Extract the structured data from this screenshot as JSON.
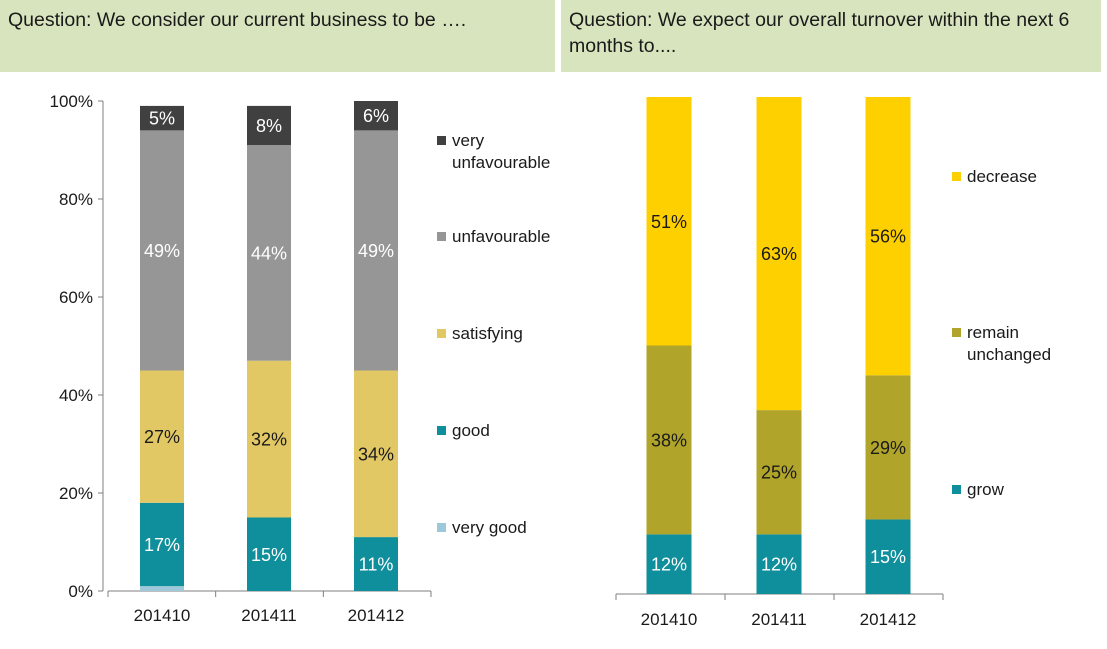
{
  "colors": {
    "header_bg": "#d7e4bd",
    "very_unfavourable": "#404040",
    "unfavourable": "#969696",
    "satisfying": "#e2c865",
    "good": "#0f8e9b",
    "very_good": "#9cc8da",
    "decrease": "#ffd000",
    "remain_unchanged": "#b0a42a",
    "grow": "#0f8e9b"
  },
  "chart_data": [
    {
      "type": "bar",
      "stacked": true,
      "title": "Question: We consider our current business to be ….",
      "categories": [
        "201410",
        "201411",
        "201412"
      ],
      "ylim": [
        0,
        100
      ],
      "y_ticks": [
        "0%",
        "20%",
        "40%",
        "60%",
        "80%",
        "100%"
      ],
      "legend_position": "right",
      "series": [
        {
          "name": "very good",
          "color": "#9cc8da",
          "values": [
            1,
            0,
            0
          ],
          "labels": [
            "",
            "",
            ""
          ]
        },
        {
          "name": "good",
          "color": "#0f8e9b",
          "values": [
            17,
            15,
            11
          ],
          "labels": [
            "17%",
            "15%",
            "11%"
          ]
        },
        {
          "name": "satisfying",
          "color": "#e2c865",
          "values": [
            27,
            32,
            34
          ],
          "labels": [
            "27%",
            "32%",
            "34%"
          ]
        },
        {
          "name": "unfavourable",
          "color": "#969696",
          "values": [
            49,
            44,
            49
          ],
          "labels": [
            "49%",
            "44%",
            "49%"
          ]
        },
        {
          "name": "very unfavourable",
          "color": "#404040",
          "values": [
            5,
            8,
            6
          ],
          "labels": [
            "5%",
            "8%",
            "6%"
          ]
        }
      ]
    },
    {
      "type": "bar",
      "stacked": true,
      "title": "Question: We expect our overall turnover within the next 6 months to....",
      "categories": [
        "201410",
        "201411",
        "201412"
      ],
      "ylim": [
        0,
        100
      ],
      "y_ticks": [],
      "legend_position": "right",
      "series": [
        {
          "name": "grow",
          "color": "#0f8e9b",
          "values": [
            12,
            12,
            15
          ],
          "labels": [
            "12%",
            "12%",
            "15%"
          ]
        },
        {
          "name": "remain unchanged",
          "color": "#b0a42a",
          "values": [
            38,
            25,
            29
          ],
          "labels": [
            "38%",
            "25%",
            "29%"
          ]
        },
        {
          "name": "decrease",
          "color": "#ffd000",
          "values": [
            51,
            63,
            56
          ],
          "labels": [
            "51%",
            "63%",
            "56%"
          ]
        }
      ]
    }
  ],
  "legends": {
    "left": [
      {
        "lines": [
          "very",
          "unfavourable"
        ],
        "color": "#404040"
      },
      {
        "lines": [
          "unfavourable"
        ],
        "color": "#969696"
      },
      {
        "lines": [
          "satisfying"
        ],
        "color": "#e2c865"
      },
      {
        "lines": [
          "good"
        ],
        "color": "#0f8e9b"
      },
      {
        "lines": [
          "very good"
        ],
        "color": "#9cc8da"
      }
    ],
    "right": [
      {
        "lines": [
          "decrease"
        ],
        "color": "#ffd000"
      },
      {
        "lines": [
          "remain",
          "unchanged"
        ],
        "color": "#b0a42a"
      },
      {
        "lines": [
          "grow"
        ],
        "color": "#0f8e9b"
      }
    ]
  }
}
